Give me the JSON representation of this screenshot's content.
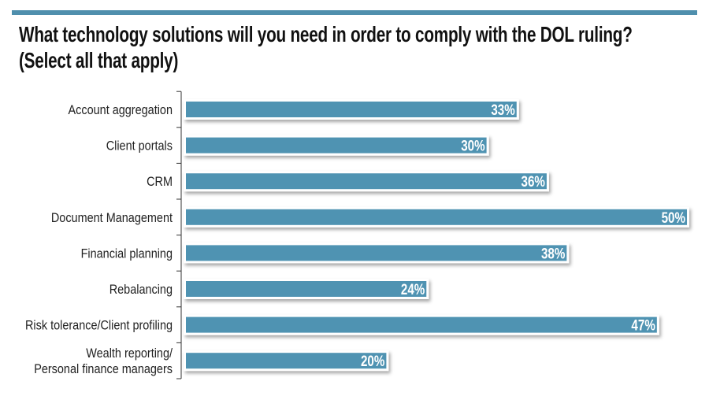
{
  "chart_data": {
    "type": "bar",
    "orientation": "horizontal",
    "title": "What technology solutions will you need in order to comply with the DOL ruling?",
    "subtitle": "(Select all that apply)",
    "categories": [
      "Account aggregation",
      "Client portals",
      "CRM",
      "Document Management",
      "Financial planning",
      "Rebalancing",
      "Risk tolerance/Client profiling",
      "Wealth reporting/\nPersonal finance managers"
    ],
    "values": [
      33,
      30,
      36,
      50,
      38,
      24,
      47,
      20
    ],
    "value_labels": [
      "33%",
      "30%",
      "36%",
      "50%",
      "38%",
      "24%",
      "47%",
      "20%"
    ],
    "xlim": [
      0,
      50
    ],
    "unit": "%",
    "bar_color": "#4f93b2",
    "accent_color": "#4f8fad",
    "grid": false
  }
}
